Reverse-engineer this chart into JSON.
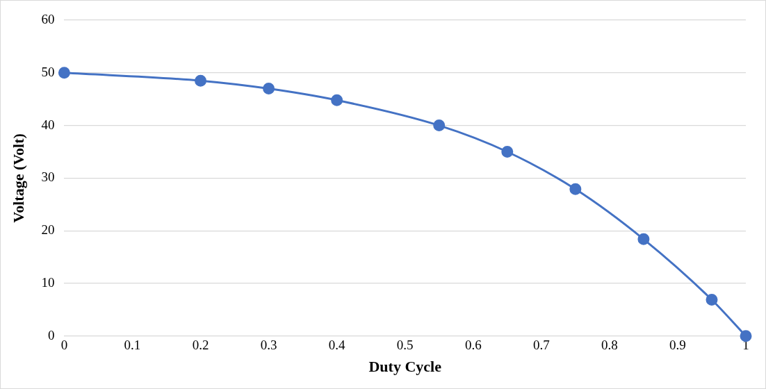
{
  "chart_data": {
    "type": "line",
    "xlabel": "Duty Cycle",
    "ylabel": "Voltage (Volt)",
    "x": [
      0,
      0.2,
      0.3,
      0.4,
      0.55,
      0.65,
      0.75,
      0.85,
      0.95,
      1
    ],
    "series": [
      {
        "color": "#4472c4",
        "values": [
          50,
          48.5,
          47,
          44.8,
          40,
          35,
          27.9,
          18.4,
          6.9,
          0
        ]
      }
    ],
    "xlim": [
      0,
      1
    ],
    "xticks": [
      0,
      0.1,
      0.2,
      0.3,
      0.4,
      0.5,
      0.6,
      0.7,
      0.8,
      0.9,
      1
    ],
    "ylim": [
      0,
      60
    ],
    "yticks": [
      0,
      10,
      20,
      30,
      40,
      50,
      60
    ],
    "grid": "y",
    "legend": false,
    "marker": "circle",
    "line_style": "solid"
  }
}
